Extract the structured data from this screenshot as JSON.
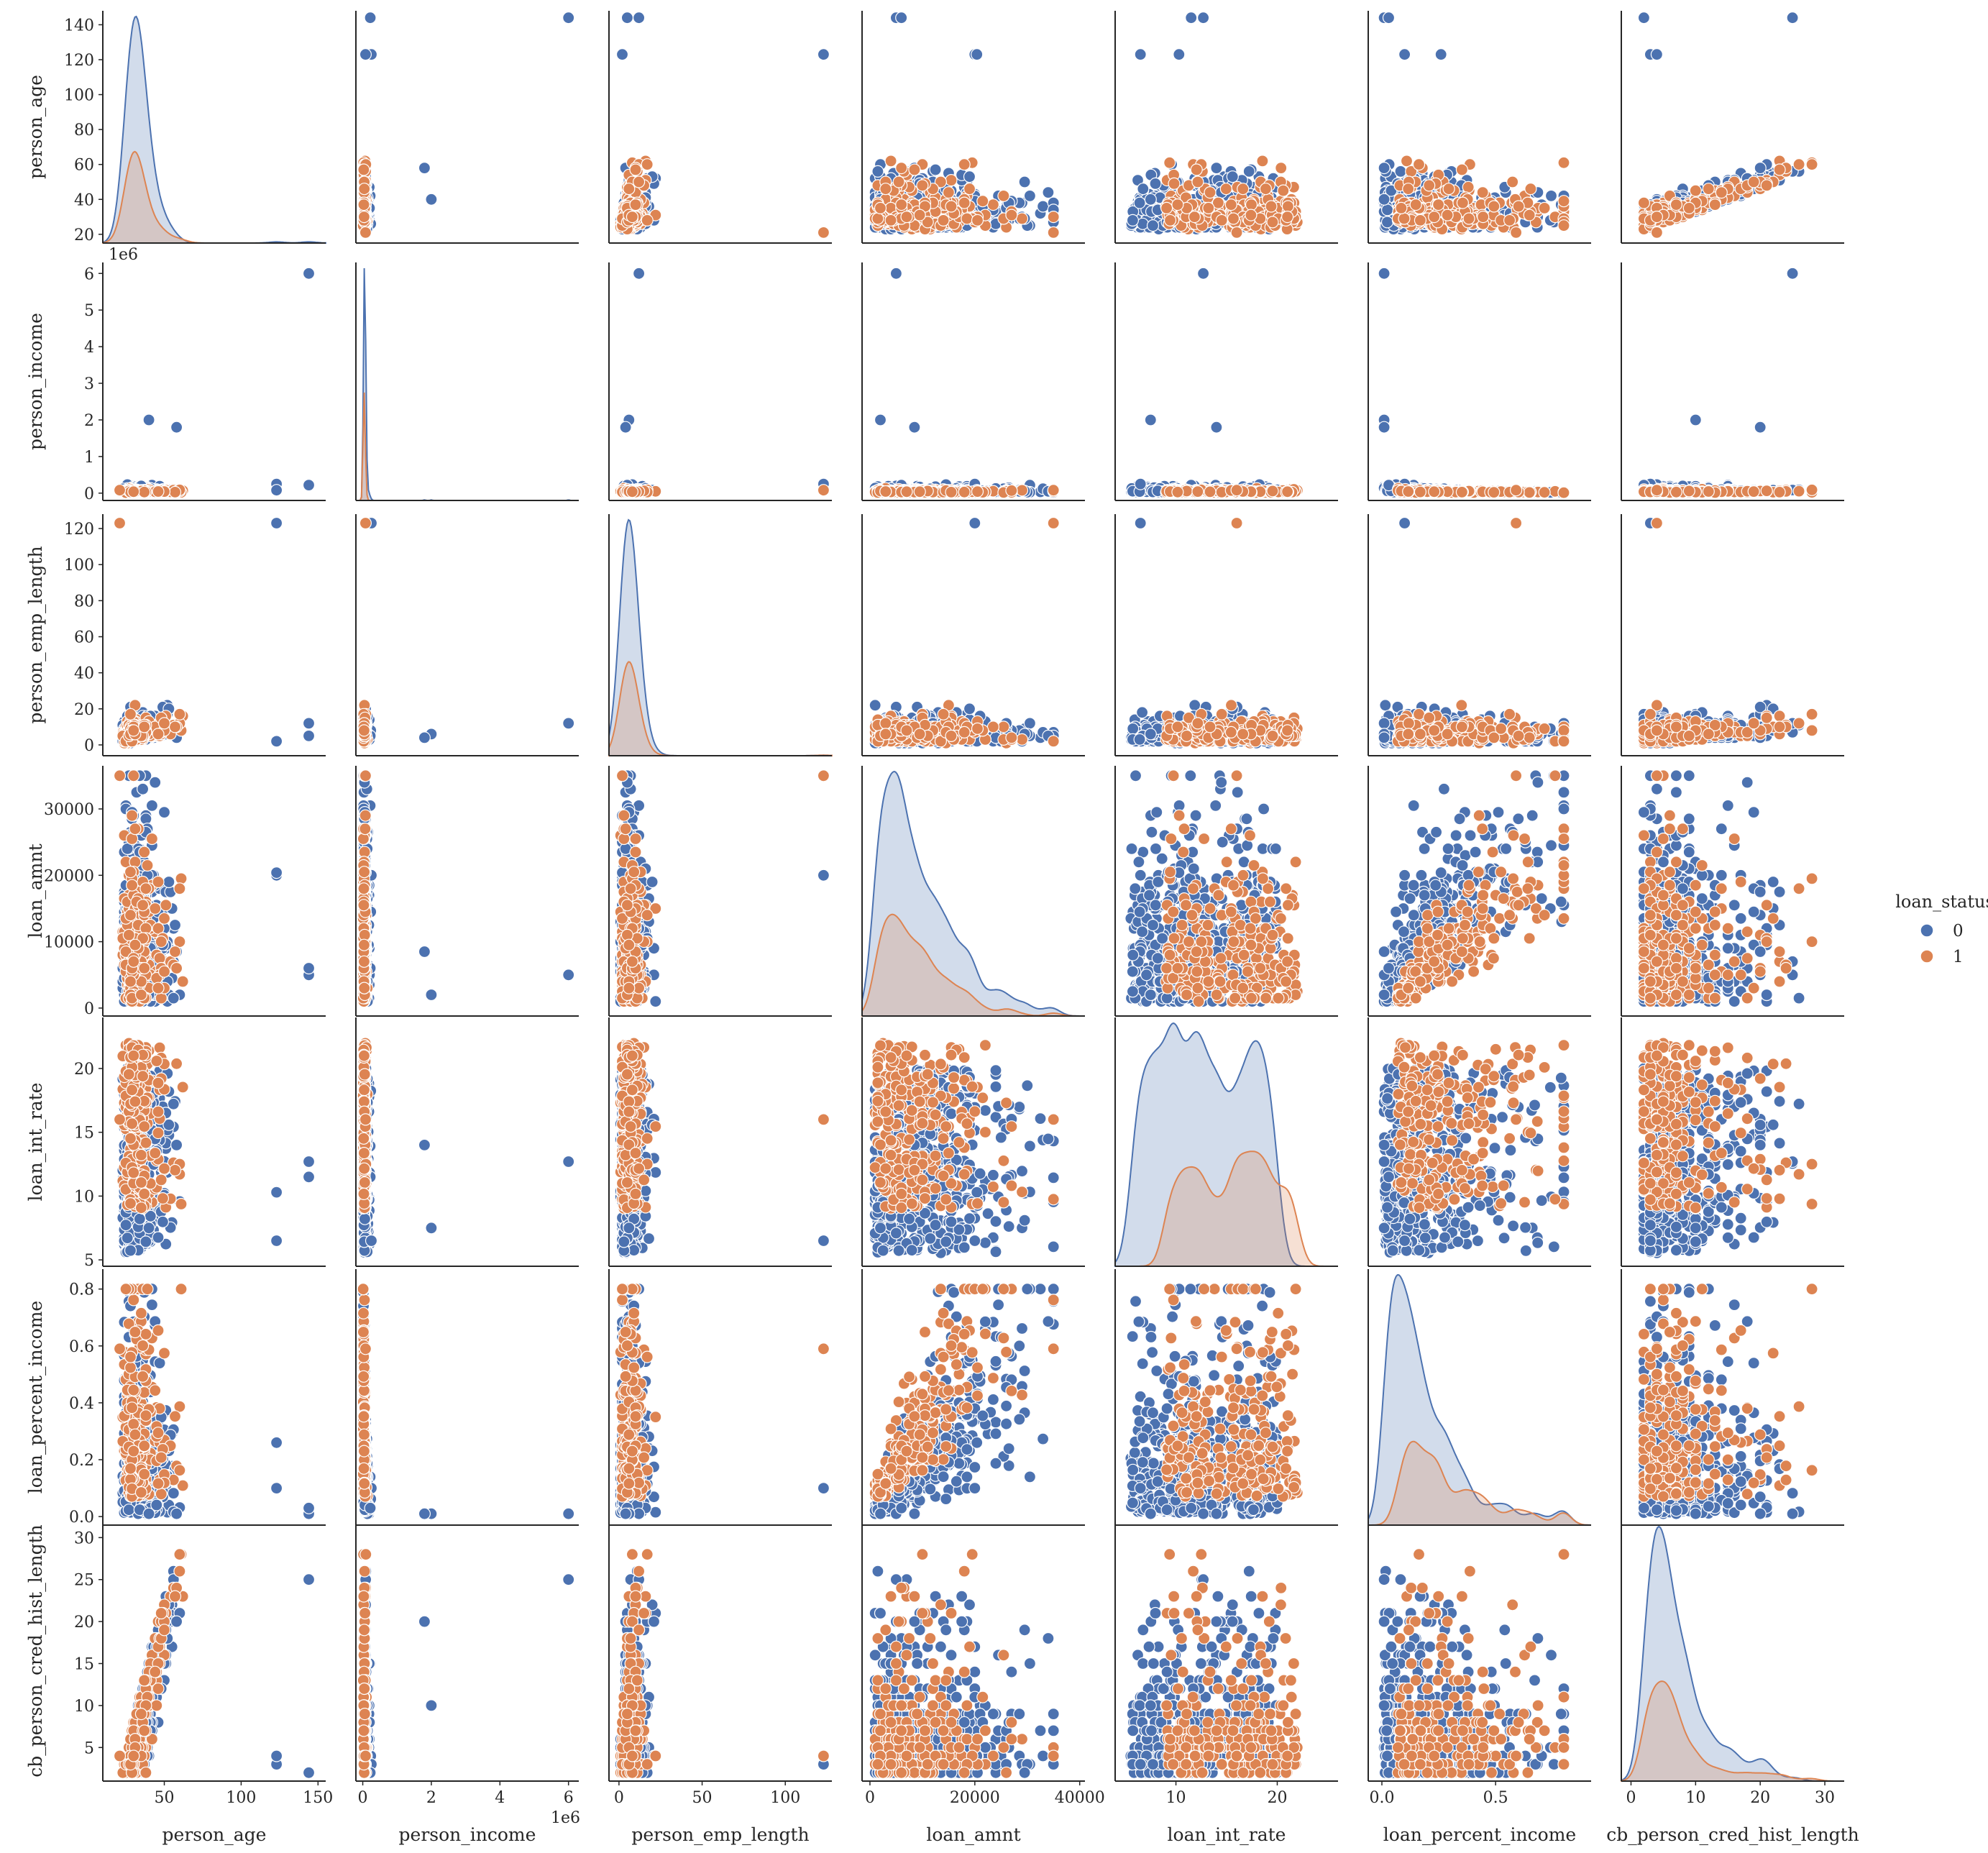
{
  "chart_data": {
    "type": "scatter",
    "subtype": "pairplot",
    "variables": [
      "person_age",
      "person_income",
      "person_emp_length",
      "loan_amnt",
      "loan_int_rate",
      "loan_percent_income",
      "cb_person_cred_hist_length"
    ],
    "axes": {
      "person_age": {
        "range": [
          10,
          155
        ],
        "ticks": [
          "50",
          "100",
          "150"
        ],
        "yticks": [
          "20",
          "40",
          "60",
          "80",
          "100",
          "120",
          "140"
        ],
        "yrange": [
          15,
          148
        ]
      },
      "person_income": {
        "range": [
          -200000,
          6300000
        ],
        "ticks": [
          "0",
          "2",
          "4",
          "6"
        ],
        "tick_values": [
          0,
          2000000,
          4000000,
          6000000
        ],
        "offset_text": "1e6",
        "yticks": [
          "0",
          "1",
          "2",
          "3",
          "4",
          "5",
          "6"
        ]
      },
      "person_emp_length": {
        "range": [
          -6,
          128
        ],
        "ticks": [
          "0",
          "50",
          "100"
        ],
        "yticks": [
          "0",
          "20",
          "40",
          "60",
          "80",
          "100",
          "120"
        ]
      },
      "loan_amnt": {
        "range": [
          -1500,
          41000
        ],
        "ticks": [
          "0",
          "20000",
          "40000"
        ],
        "yticks": [
          "0",
          "10000",
          "20000",
          "30000"
        ],
        "yrange": [
          -1200,
          36500
        ]
      },
      "loan_int_rate": {
        "range": [
          4,
          26
        ],
        "ticks": [
          "10",
          "20"
        ],
        "yticks": [
          "5",
          "10",
          "15",
          "20"
        ],
        "yrange": [
          4.5,
          24
        ]
      },
      "loan_percent_income": {
        "range": [
          -0.06,
          0.92
        ],
        "ticks": [
          "0.0",
          "0.5"
        ],
        "yticks": [
          "0.0",
          "0.2",
          "0.4",
          "0.6",
          "0.8"
        ],
        "yrange": [
          -0.03,
          0.87
        ]
      },
      "cb_person_cred_hist_length": {
        "range": [
          -1.5,
          33
        ],
        "ticks": [
          "0",
          "10",
          "20",
          "30"
        ],
        "yticks": [
          "5",
          "10",
          "15",
          "20",
          "25",
          "30"
        ],
        "yrange": [
          1,
          32
        ]
      }
    },
    "hue": "loan_status",
    "series": [
      {
        "name": "0",
        "color": "#4c72b0"
      },
      {
        "name": "1",
        "color": "#dd8452"
      }
    ],
    "diag": "kde",
    "grid": false,
    "legend_position": "right"
  },
  "legend": {
    "title": "loan_status",
    "labels": [
      "0",
      "1"
    ]
  }
}
